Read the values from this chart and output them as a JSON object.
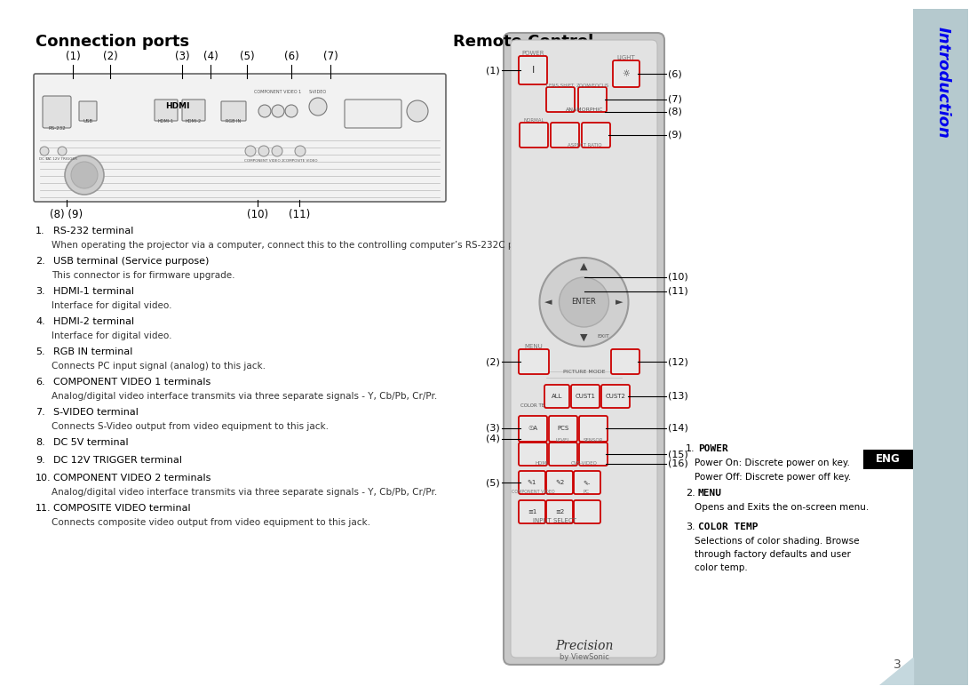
{
  "bg_color": "#ffffff",
  "sidebar_color": "#b5c9ce",
  "intro_color": "#0000ee",
  "left_title": "Connection ports",
  "right_title": "Remote Control",
  "conn_labels_top": [
    "(1)",
    "(2)",
    "(3)",
    "(4)",
    "(5)",
    "(6)",
    "(7)"
  ],
  "conn_labels_bot_left": "(8) (9)",
  "conn_labels_bot_mid1": "(10)",
  "conn_labels_bot_mid2": "(11)",
  "descriptions": [
    {
      "num": "1.",
      "bold": "RS-232 terminal",
      "sub": "When operating the projector via a computer, connect this to the controlling computer’s RS-232C port."
    },
    {
      "num": "2.",
      "bold": "USB terminal (Service purpose)",
      "sub": "This connector is for firmware upgrade."
    },
    {
      "num": "3.",
      "bold": "HDMI-1 terminal",
      "sub": "Interface for digital video."
    },
    {
      "num": "4.",
      "bold": "HDMI-2 terminal",
      "sub": "Interface for digital video."
    },
    {
      "num": "5.",
      "bold": "RGB IN terminal",
      "sub": "Connects PC input signal (analog) to this jack."
    },
    {
      "num": "6.",
      "bold": "COMPONENT VIDEO 1 terminals",
      "sub": "Analog/digital video interface transmits via three separate signals - Y, Cb/Pb, Cr/Pr."
    },
    {
      "num": "7.",
      "bold": "S-VIDEO terminal",
      "sub": "Connects S-Video output from video equipment to this jack."
    },
    {
      "num": "8.",
      "bold": "DC 5V terminal",
      "sub": ""
    },
    {
      "num": "9.",
      "bold": "DC 12V TRIGGER terminal",
      "sub": ""
    },
    {
      "num": "10.",
      "bold": "COMPONENT VIDEO 2 terminals",
      "sub": "Analog/digital video interface transmits via three separate signals - Y, Cb/Pb, Cr/Pr."
    },
    {
      "num": "11.",
      "bold": "COMPOSITE VIDEO terminal",
      "sub": "Connects composite video output from video equipment to this jack."
    }
  ],
  "power_title": "1. POWER",
  "power_lines": [
    "Power On: Discrete power on key.",
    "Power Off: Discrete power off key."
  ],
  "menu_title": "2. MENU",
  "menu_lines": [
    "Opens and Exits the on-screen menu."
  ],
  "colortemp_title": "3. COLOR TEMP",
  "colortemp_lines": [
    "Selections of color shading. Browse",
    "through factory defaults and user",
    "color temp."
  ],
  "page_num": "3",
  "eng_text": "ENG",
  "intro_text": "Introduction",
  "remote_right_callouts": [
    "(6)",
    "(7)",
    "(8)",
    "(9)",
    "(10)",
    "(11)",
    "(12)",
    "(13)",
    "(14)",
    "(15)",
    "(16)"
  ],
  "remote_left_callouts": [
    "(1)",
    "(2)",
    "(3)",
    "(4)",
    "(5)"
  ]
}
